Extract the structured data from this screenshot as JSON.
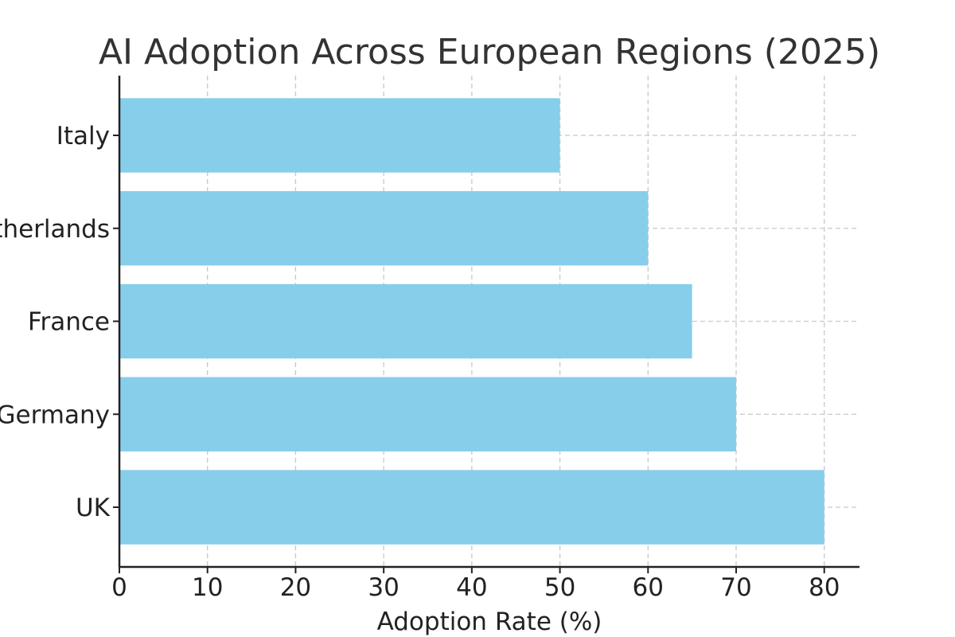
{
  "chart_data": {
    "type": "bar",
    "orientation": "horizontal",
    "title": "AI Adoption Across European Regions (2025)",
    "xlabel": "Adoption Rate (%)",
    "ylabel": "",
    "categories": [
      "UK",
      "Germany",
      "France",
      "Netherlands",
      "Italy"
    ],
    "values": [
      80,
      70,
      65,
      60,
      50
    ],
    "xlim": [
      0,
      84
    ],
    "xticks": [
      0,
      10,
      20,
      30,
      40,
      50,
      60,
      70,
      80
    ],
    "grid": true,
    "bar_color": "#87CEEB"
  }
}
